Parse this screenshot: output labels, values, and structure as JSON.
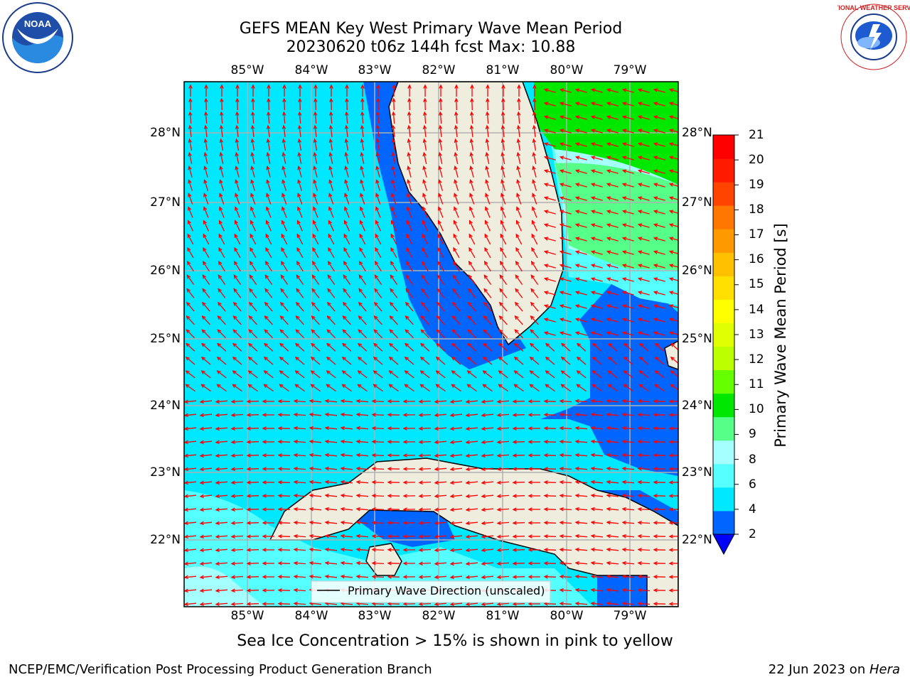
{
  "header": {
    "title_line1": "GEFS MEAN Key West Primary Wave Mean Period",
    "title_line2": "20230620 t06z 144h fcst   Max: 10.88"
  },
  "map": {
    "lon_labels": [
      "85°W",
      "84°W",
      "83°W",
      "82°W",
      "81°W",
      "80°W",
      "79°W"
    ],
    "lat_labels": [
      "28°N",
      "27°N",
      "26°N",
      "25°N",
      "24°N",
      "23°N",
      "22°N"
    ],
    "legend_label": "Primary Wave Direction (unscaled)",
    "arrow_color": "#ff0000",
    "land_color": "#efedde",
    "grid_color": "#b0b0b0"
  },
  "colorbar": {
    "title": "Primary Wave Mean Period [s]",
    "ticks": [
      "21",
      "20",
      "19",
      "18",
      "17",
      "16",
      "15",
      "14",
      "13",
      "12",
      "11",
      "10",
      "9",
      "8",
      "6",
      "4",
      "2"
    ],
    "colors": [
      "#0066ff",
      "#00e8ff",
      "#55ffff",
      "#a6ffff",
      "#55ff88",
      "#00e800",
      "#66ff00",
      "#bbff00",
      "#e0ff00",
      "#ffff00",
      "#ffe000",
      "#ffc000",
      "#ff9900",
      "#ff7700",
      "#ff4400",
      "#ff1a00",
      "#ff0000"
    ],
    "under_color": "#0000ff"
  },
  "footer": {
    "ice_note": "Sea Ice Concentration > 15% is shown in pink to yellow",
    "org": "NCEP/EMC/Verification Post Processing Product Generation Branch",
    "date": "22 Jun 2023 on ",
    "host": "Hera"
  },
  "logos": {
    "noaa_text": "NOAA",
    "nws_text": "NATIONAL WEATHER SERVICE"
  }
}
